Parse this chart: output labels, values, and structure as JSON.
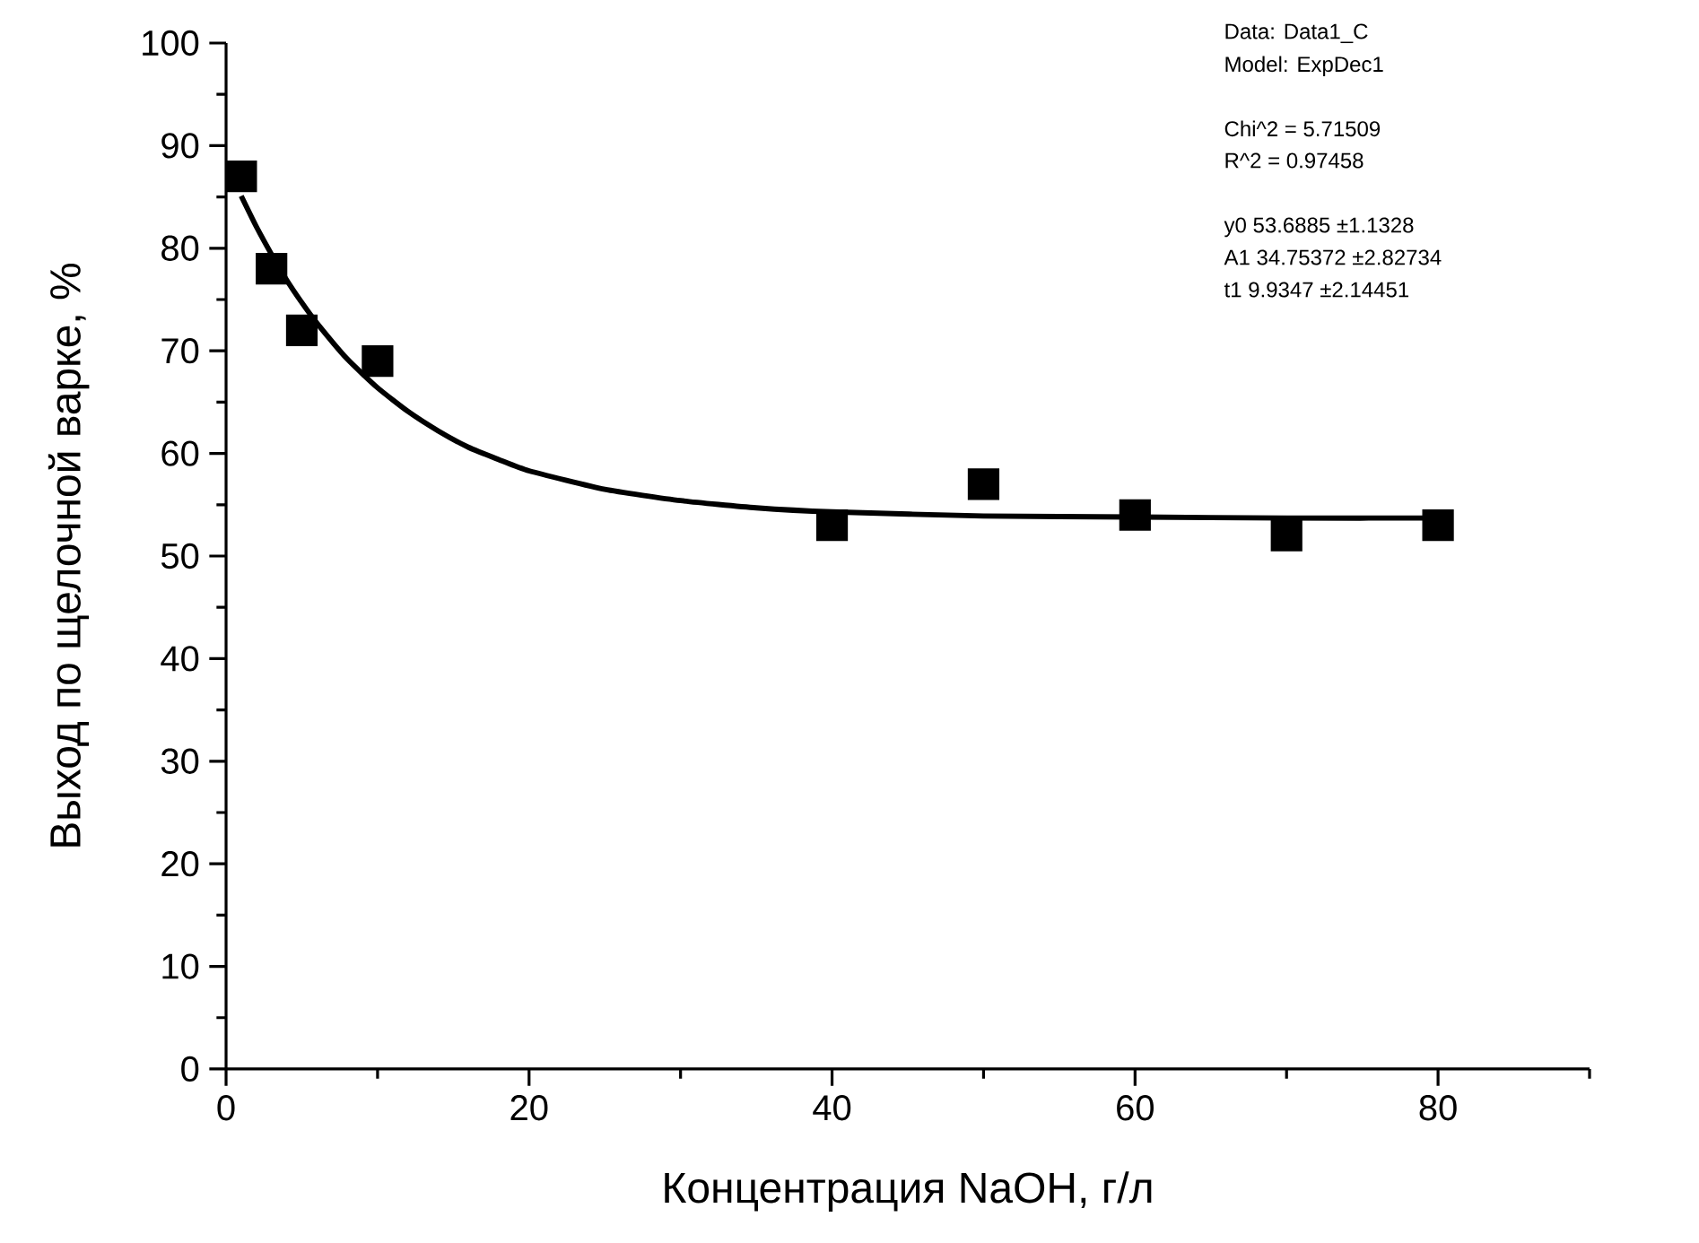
{
  "chart_data": {
    "type": "scatter",
    "xlabel": "Концентрация NaOH, г/л",
    "ylabel": "Выход по щелочной варке, %",
    "xlim": [
      0,
      90
    ],
    "ylim": [
      0,
      100
    ],
    "xticks": [
      0,
      {
        "value": 10,
        "label": null
      },
      20,
      {
        "value": 30,
        "label": null
      },
      40,
      {
        "value": 50,
        "label": null
      },
      60,
      {
        "value": 70,
        "label": null
      },
      80,
      {
        "value": 90,
        "label": null
      }
    ],
    "yticks": [
      0,
      {
        "value": 5,
        "label": null
      },
      10,
      {
        "value": 15,
        "label": null
      },
      20,
      {
        "value": 25,
        "label": null
      },
      30,
      {
        "value": 35,
        "label": null
      },
      40,
      {
        "value": 45,
        "label": null
      },
      50,
      {
        "value": 55,
        "label": null
      },
      60,
      {
        "value": 65,
        "label": null
      },
      70,
      {
        "value": 75,
        "label": null
      },
      80,
      {
        "value": 85,
        "label": null
      },
      90,
      {
        "value": 95,
        "label": null
      },
      100
    ],
    "series": [
      {
        "marker": "square",
        "color": "#000000",
        "x": [
          1,
          3,
          5,
          10,
          40,
          50,
          60,
          70,
          80
        ],
        "values": [
          87,
          78,
          72,
          69,
          53,
          57,
          54,
          52,
          53
        ]
      },
      {
        "type": "line",
        "marker": "none",
        "line_style": "solid",
        "color": "#000000",
        "x": [
          1,
          2,
          3,
          4,
          5,
          6,
          8,
          10,
          12,
          14,
          16,
          18,
          20,
          25,
          30,
          35,
          40,
          50,
          60,
          70,
          80
        ],
        "values": [
          85.1,
          82.1,
          79.4,
          76.9,
          74.7,
          72.7,
          69.2,
          66.4,
          64.1,
          62.2,
          60.6,
          59.4,
          58.3,
          56.5,
          55.4,
          54.7,
          54.3,
          53.9,
          53.8,
          53.7,
          53.7
        ]
      }
    ],
    "annotations": [
      "Data: Data1_C",
      "Model: ExpDec1",
      "Chi^2   =  5.71509",
      "R^2     =  0.97458",
      "y0       53.6885          ±1.1328",
      "A1       34.75372        ±2.82734",
      "t1       9.9347  ±2.14451"
    ]
  }
}
